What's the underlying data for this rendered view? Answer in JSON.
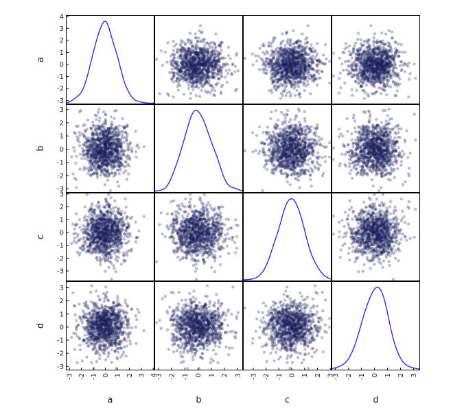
{
  "chart_data": {
    "type": "scatter-matrix",
    "variables": [
      "a",
      "b",
      "c",
      "d"
    ],
    "diagonal": "kde",
    "n_points": 1000,
    "distribution": "standard normal, independent",
    "ranges": {
      "a": [
        -3.3,
        4.1
      ],
      "b": [
        -3.3,
        3.4
      ],
      "c": [
        -3.8,
        3.1
      ],
      "d": [
        -3.3,
        3.5
      ]
    },
    "y_ticks": {
      "a": [
        "4",
        "3",
        "2",
        "1",
        "0",
        "-1",
        "-2",
        "-3"
      ],
      "b": [
        "3",
        "2",
        "1",
        "0",
        "-1",
        "-2",
        "-3"
      ],
      "c": [
        "3",
        "2",
        "1",
        "0",
        "-1",
        "-2",
        "-3"
      ],
      "d": [
        "3",
        "2",
        "1",
        "0",
        "-1",
        "-2",
        "-3"
      ]
    },
    "x_ticks": {
      "a": [
        "-3",
        "-2",
        "-1",
        "0",
        "1",
        "2",
        "3",
        "4"
      ],
      "b": [
        "-3",
        "-2",
        "-1",
        "0",
        "1",
        "2",
        "3"
      ],
      "c": [
        "-3",
        "-2",
        "-1",
        "0",
        "1",
        "2",
        "3"
      ],
      "d": [
        "-3",
        "-2",
        "-1",
        "0",
        "1",
        "2",
        "3"
      ]
    },
    "point_color": "#1b1f5e",
    "point_alpha": 0.3,
    "kde_color": "#2a2ae8",
    "grid": false,
    "legend": "none"
  }
}
